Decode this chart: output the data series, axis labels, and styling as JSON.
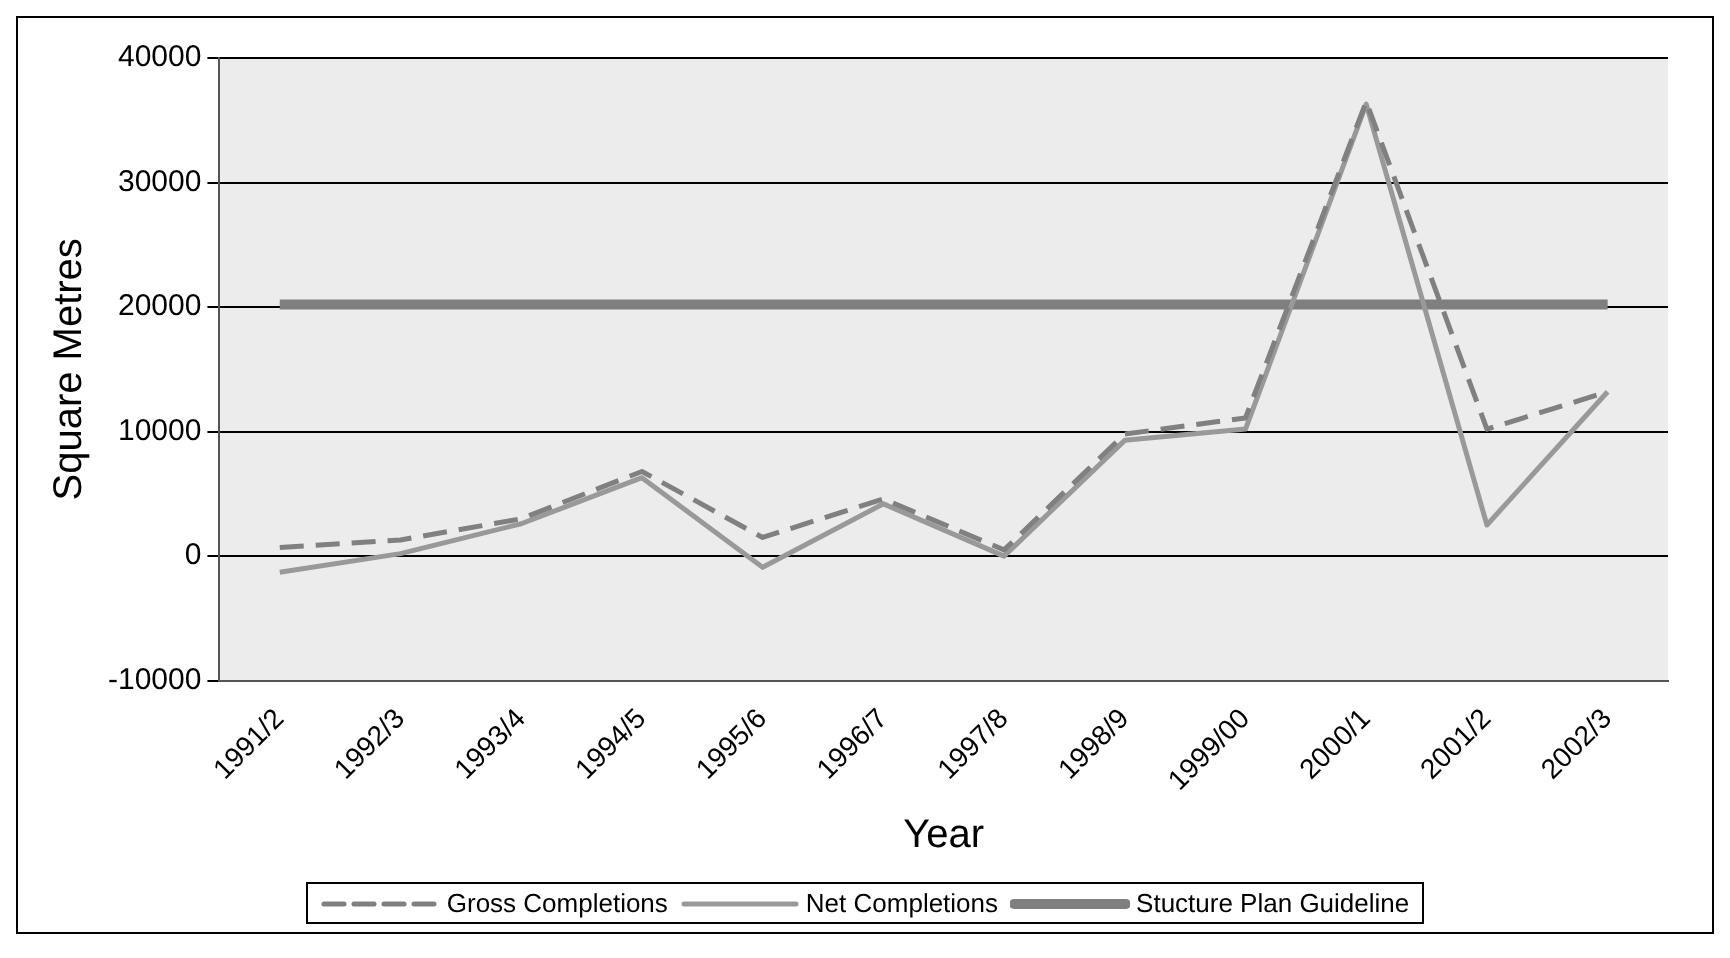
{
  "chart_data": {
    "type": "line",
    "xlabel": "Year",
    "ylabel": "Square Metres",
    "categories": [
      "1991/2",
      "1992/3",
      "1993/4",
      "1994/5",
      "1995/6",
      "1996/7",
      "1997/8",
      "1998/9",
      "1999/00",
      "2000/1",
      "2001/2",
      "2002/3"
    ],
    "series": [
      {
        "name": "Gross Completions",
        "color": "#808080",
        "line_style": "dashed",
        "values": [
          700,
          1300,
          3000,
          6800,
          1500,
          4600,
          500,
          9800,
          11100,
          36500,
          10200,
          13200
        ]
      },
      {
        "name": "Net Completions",
        "color": "#999999",
        "line_style": "solid",
        "values": [
          -1300,
          200,
          2600,
          6300,
          -900,
          4200,
          0,
          9300,
          10200,
          36300,
          2500,
          13200
        ]
      },
      {
        "name": "Stucture Plan Guideline",
        "color": "#7f7f7f",
        "line_style": "solid",
        "values": [
          20200,
          20200,
          20200,
          20200,
          20200,
          20200,
          20200,
          20200,
          20200,
          20200,
          20200,
          20200
        ]
      }
    ],
    "ylim": [
      -10000,
      40000
    ],
    "yticks": [
      -10000,
      0,
      10000,
      20000,
      30000,
      40000
    ],
    "grid": "y",
    "legend": "bottom",
    "marker": "none"
  }
}
